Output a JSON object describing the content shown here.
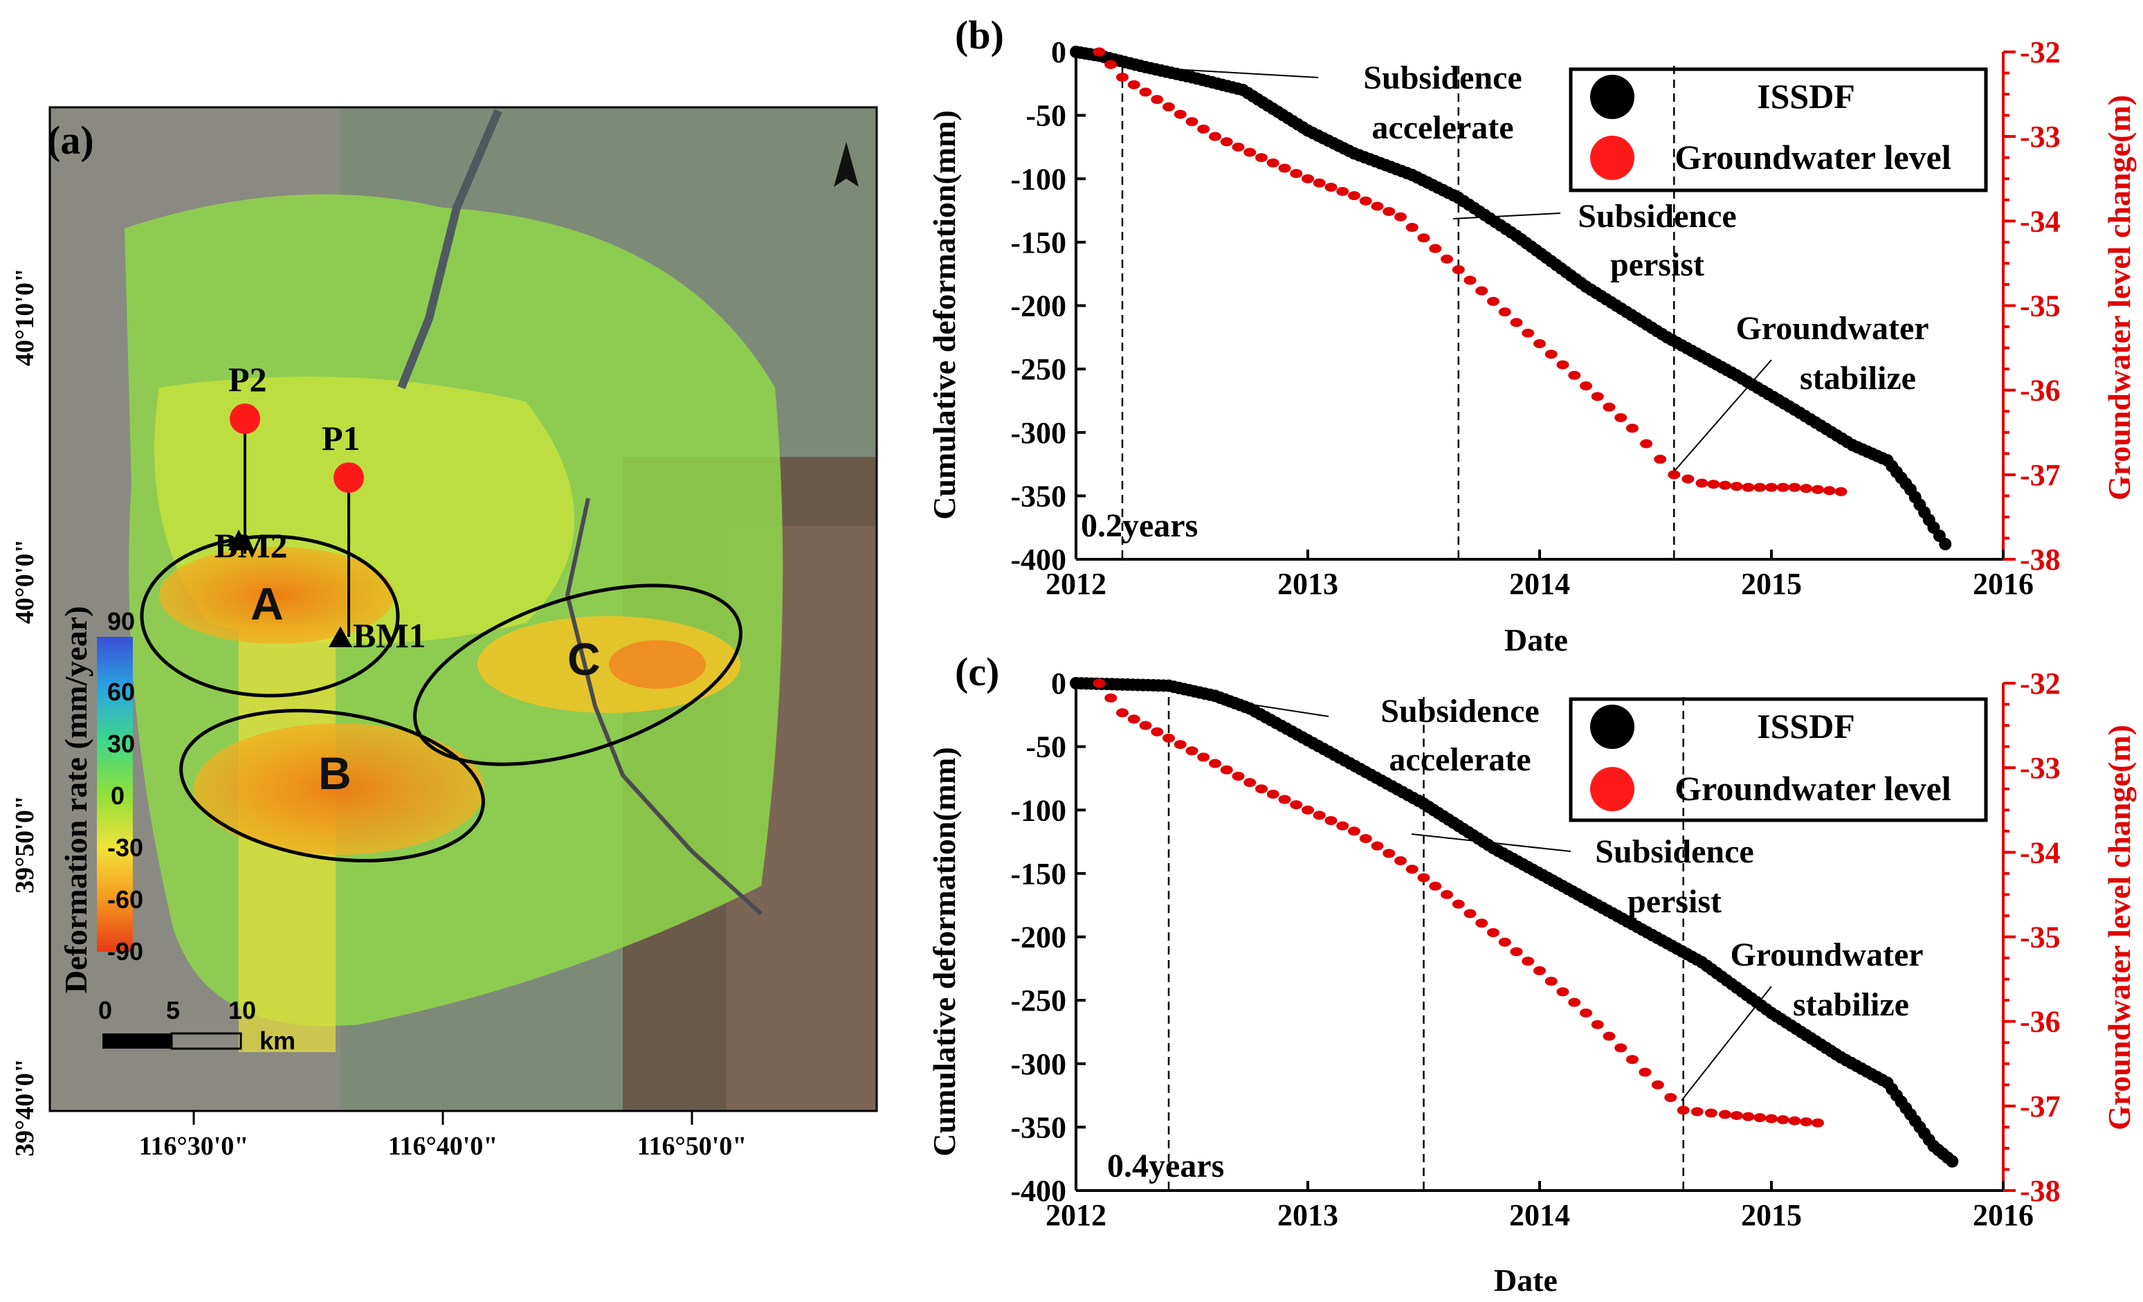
{
  "figure": {
    "panel_a_label": "(a)",
    "panel_b_label": "(b)",
    "panel_c_label": "(c)"
  },
  "map": {
    "lon_ticks": [
      "116°30'0\"",
      "116°40'0\"",
      "116°50'0\""
    ],
    "lat_ticks": [
      "40°10'0\"",
      "40°0'0\"",
      "39°50'0\"",
      "39°40'0\""
    ],
    "zones": [
      "A",
      "B",
      "C"
    ],
    "points": [
      {
        "name": "P2",
        "benchmark": "BM2"
      },
      {
        "name": "P1",
        "benchmark": "BM1"
      }
    ],
    "colorbar": {
      "title": "Deformation rate (mm/year)",
      "ticks": [
        "90",
        "60",
        "30",
        "0",
        "-30",
        "-60",
        "-90"
      ],
      "colors": [
        "#3a4fd8",
        "#2aa8e0",
        "#3ed68a",
        "#8fe03a",
        "#f2e23a",
        "#f59a1e",
        "#e83a14"
      ]
    },
    "scalebar": {
      "ticks": [
        "0",
        "5",
        "10"
      ],
      "unit": "km"
    },
    "north_arrow": "north-arrow-icon"
  },
  "chart_data": [
    {
      "id": "b",
      "type": "scatter",
      "xlabel": "Date",
      "ylabel": "Cumulative deformation(mm)",
      "ylabel_right": "Groundwater level change(m)",
      "xlim": [
        2012,
        2016
      ],
      "ylim": [
        -400,
        0
      ],
      "ylim_right": [
        -38,
        -32
      ],
      "xticks": [
        "2012",
        "2013",
        "2014",
        "2015",
        "2016"
      ],
      "yticks": [
        "0",
        "-50",
        "-100",
        "-150",
        "-200",
        "-250",
        "-300",
        "-350",
        "-400"
      ],
      "yticks_right": [
        "-32",
        "-33",
        "-34",
        "-35",
        "-36",
        "-37",
        "-38"
      ],
      "legend": [
        "ISSDF",
        "Groundwater level"
      ],
      "annotations": {
        "accelerate": [
          "Subsidence",
          "accelerate"
        ],
        "persist": [
          "Subsidence",
          "persist"
        ],
        "stabilize": [
          "Groundwater",
          "stabilize"
        ],
        "lag": "0.2years"
      },
      "vlines": [
        2012.2,
        2013.65,
        2014.58
      ],
      "series": [
        {
          "name": "ISSDF",
          "axis": "left",
          "color": "#000000",
          "x": [
            2012.0,
            2012.1,
            2012.3,
            2012.5,
            2012.72,
            2013.0,
            2013.2,
            2013.45,
            2013.65,
            2013.9,
            2014.2,
            2014.55,
            2014.85,
            2015.1,
            2015.35,
            2015.5,
            2015.6,
            2015.7,
            2015.75
          ],
          "y": [
            0,
            -3,
            -12,
            -20,
            -30,
            -62,
            -80,
            -97,
            -115,
            -145,
            -185,
            -225,
            -255,
            -282,
            -310,
            -322,
            -345,
            -375,
            -388
          ]
        },
        {
          "name": "Groundwater level",
          "axis": "right",
          "color": "#e00000",
          "x": [
            2012.1,
            2012.2,
            2012.4,
            2012.6,
            2012.8,
            2013.0,
            2013.2,
            2013.4,
            2013.6,
            2013.8,
            2014.0,
            2014.2,
            2014.4,
            2014.58,
            2014.7,
            2014.9,
            2015.1,
            2015.3
          ],
          "y": [
            -32.0,
            -32.3,
            -32.65,
            -33.0,
            -33.25,
            -33.5,
            -33.7,
            -33.95,
            -34.45,
            -34.95,
            -35.45,
            -35.95,
            -36.45,
            -37.0,
            -37.1,
            -37.15,
            -37.15,
            -37.2
          ]
        }
      ]
    },
    {
      "id": "c",
      "type": "scatter",
      "xlabel": "Date",
      "ylabel": "Cumulative deformation(mm)",
      "ylabel_right": "Groundwater level change(m)",
      "xlim": [
        2012,
        2016
      ],
      "ylim": [
        -400,
        0
      ],
      "ylim_right": [
        -38,
        -32
      ],
      "xticks": [
        "2012",
        "2013",
        "2014",
        "2015",
        "2016"
      ],
      "yticks": [
        "0",
        "-50",
        "-100",
        "-150",
        "-200",
        "-250",
        "-300",
        "-350",
        "-400"
      ],
      "yticks_right": [
        "-32",
        "-33",
        "-34",
        "-35",
        "-36",
        "-37",
        "-38"
      ],
      "legend": [
        "ISSDF",
        "Groundwater level"
      ],
      "annotations": {
        "accelerate": [
          "Subsidence",
          "accelerate"
        ],
        "persist": [
          "Subsidence",
          "persist"
        ],
        "stabilize": [
          "Groundwater",
          "stabilize"
        ],
        "lag": "0.4years"
      },
      "vlines": [
        2012.4,
        2013.5,
        2014.62
      ],
      "series": [
        {
          "name": "ISSDF",
          "axis": "left",
          "color": "#000000",
          "x": [
            2012.0,
            2012.2,
            2012.4,
            2012.6,
            2012.75,
            2013.0,
            2013.25,
            2013.5,
            2013.8,
            2014.1,
            2014.4,
            2014.7,
            2015.0,
            2015.3,
            2015.5,
            2015.6,
            2015.7,
            2015.78
          ],
          "y": [
            0,
            -1,
            -2,
            -10,
            -20,
            -45,
            -70,
            -95,
            -130,
            -160,
            -190,
            -220,
            -260,
            -295,
            -315,
            -340,
            -365,
            -377
          ]
        },
        {
          "name": "Groundwater level",
          "axis": "right",
          "color": "#e00000",
          "x": [
            2012.1,
            2012.2,
            2012.4,
            2012.6,
            2012.8,
            2013.0,
            2013.2,
            2013.4,
            2013.6,
            2013.8,
            2014.0,
            2014.2,
            2014.4,
            2014.62,
            2014.8,
            2015.0,
            2015.2
          ],
          "y": [
            -32.0,
            -32.35,
            -32.65,
            -32.95,
            -33.25,
            -33.5,
            -33.75,
            -34.1,
            -34.5,
            -34.95,
            -35.4,
            -35.9,
            -36.45,
            -37.05,
            -37.1,
            -37.15,
            -37.2
          ]
        }
      ]
    }
  ]
}
